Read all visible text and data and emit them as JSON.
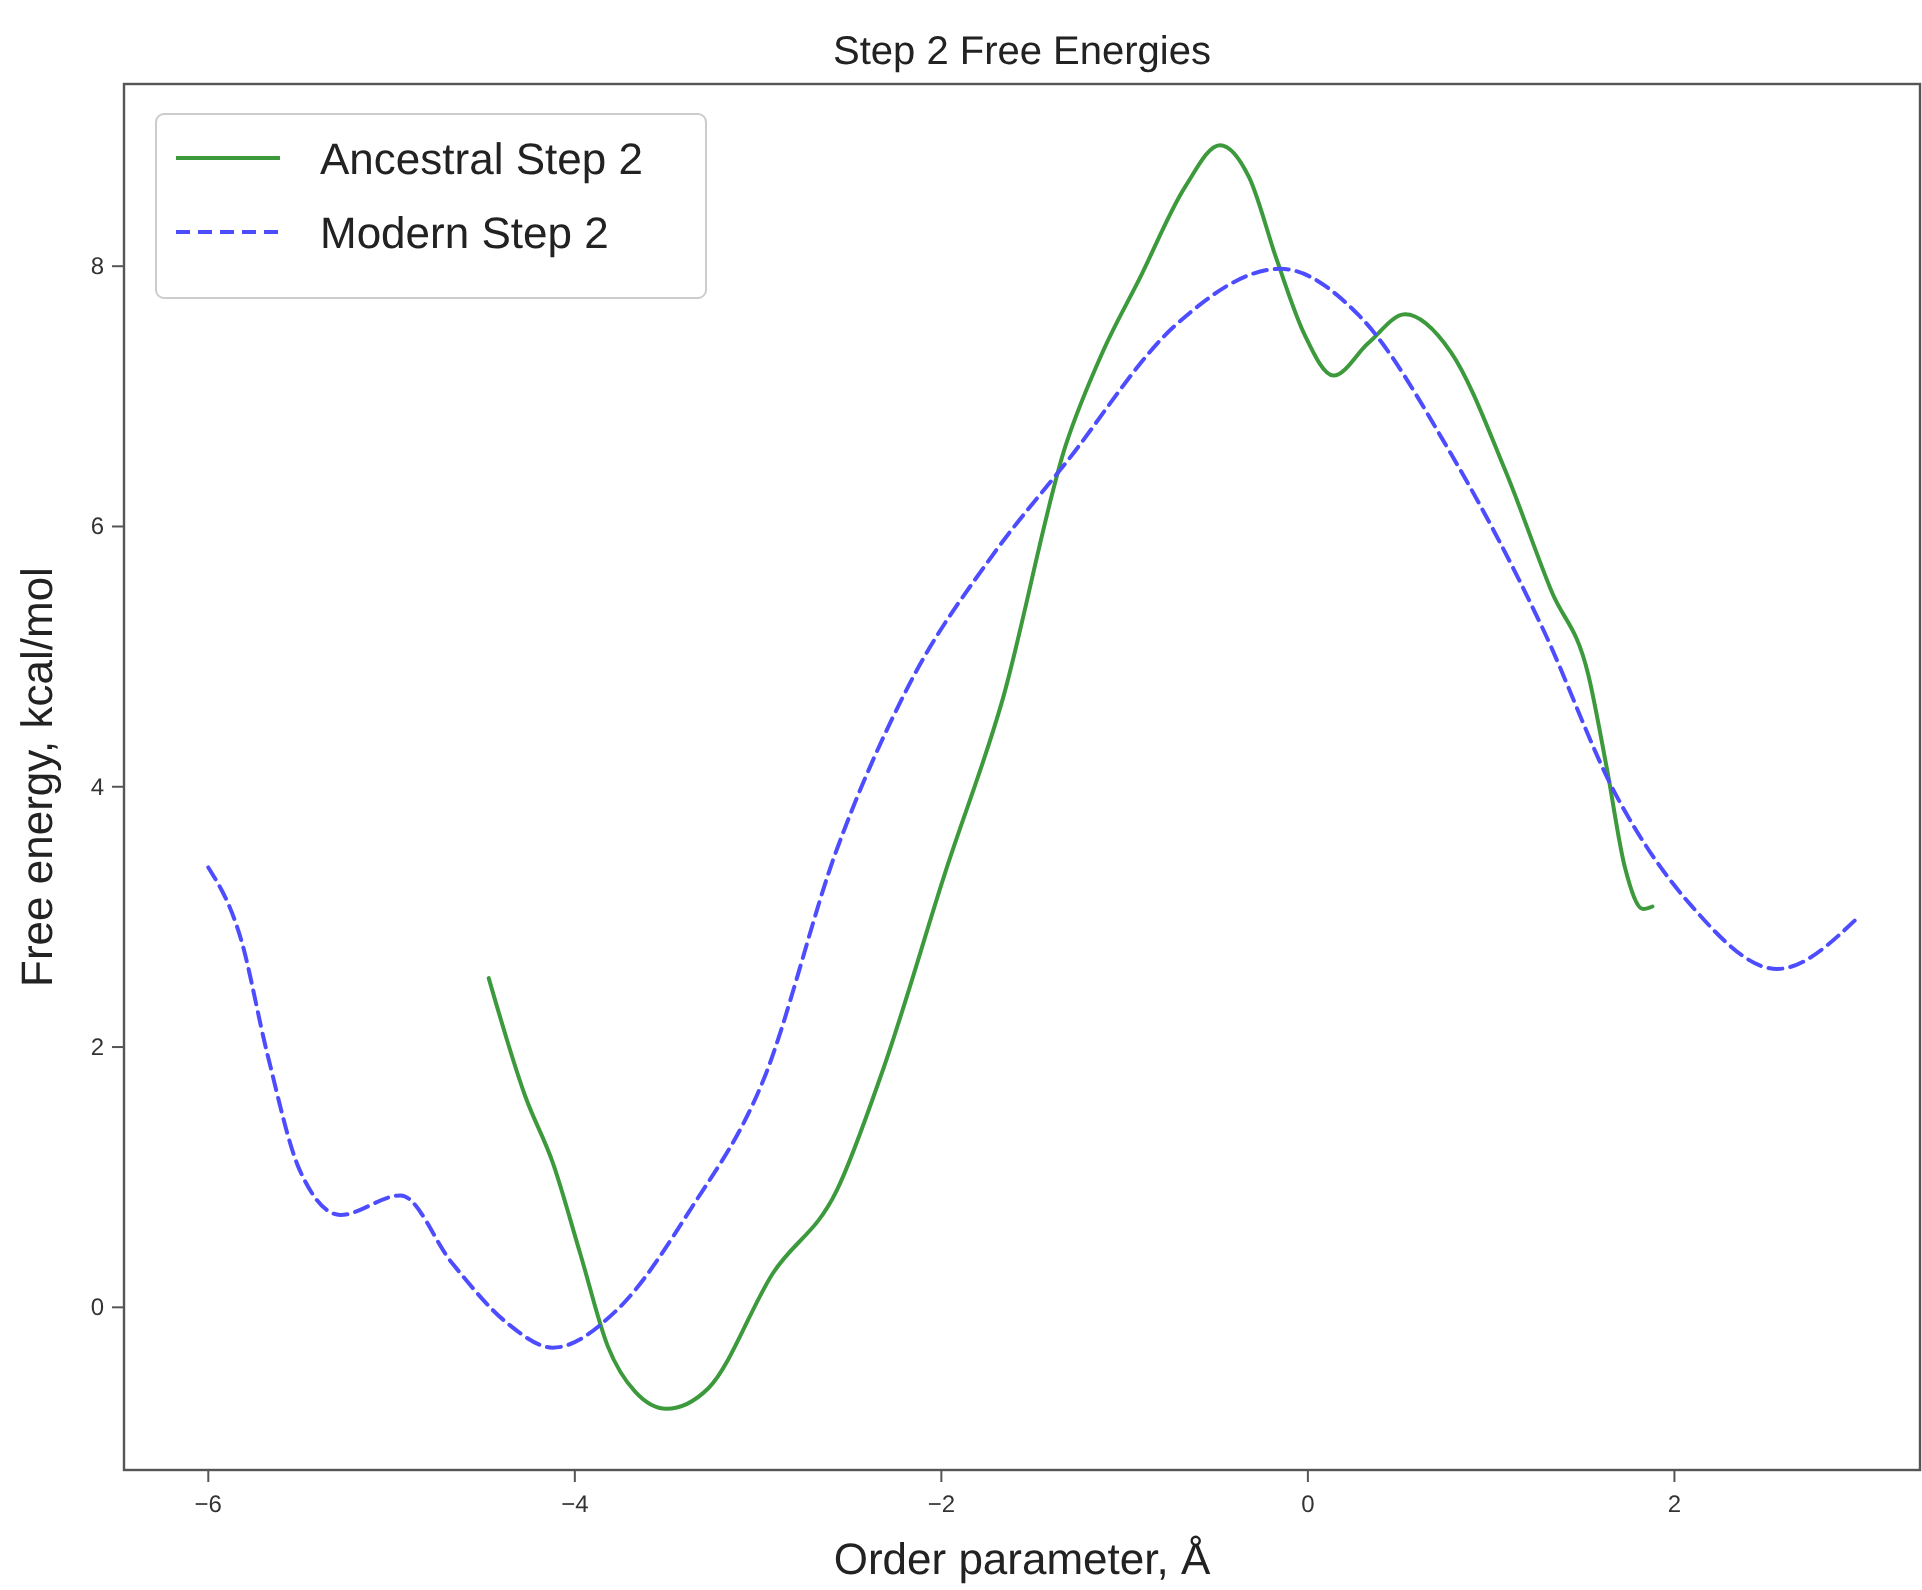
{
  "chart_data": {
    "type": "line",
    "title": "Step 2 Free Energies",
    "xlabel": "Order parameter, Å",
    "ylabel": "Free energy, kcal/mol",
    "xlim": [
      -6.46,
      3.34
    ],
    "ylim": [
      -1.25,
      9.4
    ],
    "xticks": [
      -6,
      -4,
      -2,
      0,
      2
    ],
    "yticks": [
      0,
      2,
      4,
      6,
      8
    ],
    "grid": false,
    "legend": "top left",
    "marker": "none",
    "series": [
      {
        "name": "Ancestral Step 2",
        "color": "#3c9a3c",
        "line_style": "solid",
        "x": [
          -4.47,
          -4.27,
          -4.12,
          -3.97,
          -3.82,
          -3.67,
          -3.5,
          -3.27,
          -2.92,
          -2.57,
          -2.32,
          -1.97,
          -1.67,
          -1.32,
          -1.12,
          -0.92,
          -0.67,
          -0.48,
          -0.32,
          -0.17,
          -0.02,
          0.14,
          0.33,
          0.53,
          0.78,
          1.08,
          1.33,
          1.53,
          1.63,
          1.73,
          1.83,
          1.88
        ],
        "values": [
          2.53,
          1.62,
          1.11,
          0.41,
          -0.3,
          -0.65,
          -0.78,
          -0.62,
          0.26,
          0.9,
          1.82,
          3.38,
          4.65,
          6.63,
          7.34,
          7.9,
          8.61,
          8.93,
          8.68,
          8.05,
          7.48,
          7.16,
          7.41,
          7.63,
          7.34,
          6.42,
          5.5,
          4.86,
          4.15,
          3.38,
          3.06,
          3.08
        ]
      },
      {
        "name": "Modern Step 2",
        "color": "#4d4dff",
        "line_style": "dashed",
        "x": [
          -6.0,
          -5.82,
          -5.68,
          -5.5,
          -5.28,
          -4.95,
          -4.67,
          -4.37,
          -4.12,
          -3.77,
          -3.37,
          -2.97,
          -2.57,
          -2.17,
          -1.72,
          -1.32,
          -0.72,
          -0.15,
          0.28,
          0.78,
          1.28,
          1.68,
          2.09,
          2.56,
          2.99
        ],
        "values": [
          3.38,
          2.82,
          1.96,
          1.05,
          0.71,
          0.86,
          0.34,
          -0.12,
          -0.31,
          -0.02,
          0.75,
          1.75,
          3.52,
          4.8,
          5.78,
          6.49,
          7.55,
          7.98,
          7.62,
          6.56,
          5.22,
          3.94,
          3.09,
          2.6,
          2.98
        ]
      }
    ]
  }
}
